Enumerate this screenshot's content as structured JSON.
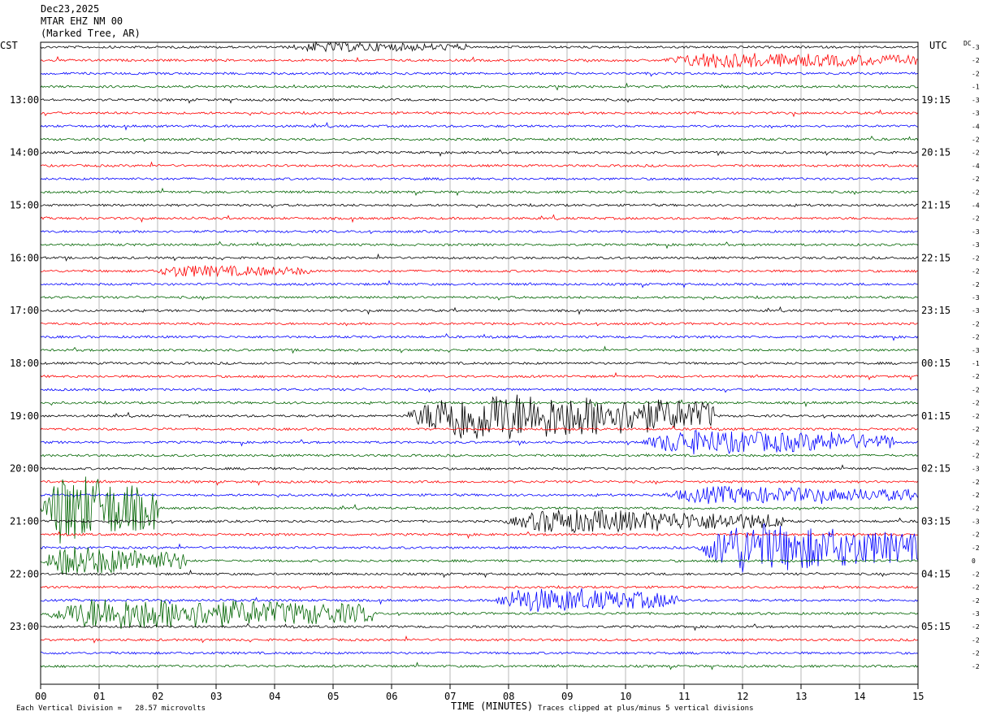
{
  "header": {
    "date": "Dec23,2025",
    "station": "MTAR EHZ NM 00",
    "location": "(Marked Tree, AR)"
  },
  "footer": {
    "scale_note": "Each Vertical Division =   28.57 microvolts",
    "clip_note": "Traces clipped at plus/minus 5 vertical divisions"
  },
  "chart_data": {
    "type": "line",
    "title": "",
    "xlabel": "TIME (MINUTES)",
    "x_ticks": [
      "00",
      "01",
      "02",
      "03",
      "04",
      "05",
      "06",
      "07",
      "08",
      "09",
      "10",
      "11",
      "12",
      "13",
      "14",
      "15"
    ],
    "xlim": [
      0,
      15
    ],
    "left_axis_title": "CST",
    "right_axis_title": "UTC",
    "dc_label": "DC",
    "left_hour_labels": [
      "13:00",
      "14:00",
      "15:00",
      "16:00",
      "17:00",
      "18:00",
      "19:00",
      "20:00",
      "21:00",
      "22:00",
      "23:00"
    ],
    "right_hour_labels": [
      "19:15",
      "20:15",
      "21:15",
      "22:15",
      "23:15",
      "00:15",
      "01:15",
      "02:15",
      "03:15",
      "04:15",
      "05:15"
    ],
    "hour_label_first_trace": 4,
    "trace_colors": [
      "#000000",
      "#ff0000",
      "#0000ff",
      "#006400"
    ],
    "trace_count": 48,
    "dc_offsets": [
      -3,
      -2,
      -2,
      -1,
      -3,
      -3,
      -4,
      -2,
      -2,
      -4,
      -2,
      -2,
      -4,
      -2,
      -3,
      -3,
      -2,
      -2,
      -2,
      -3,
      -3,
      -2,
      -2,
      -3,
      -1,
      -2,
      -2,
      -2,
      -2,
      -2,
      -2,
      -2,
      -3,
      -2,
      -2,
      -2,
      -3,
      -2,
      -2,
      0,
      -2,
      -2,
      -2,
      -3,
      -2,
      -2,
      -2,
      -2
    ],
    "amplitude_scale": "28.57 microvolts per division",
    "clip_divisions": 5,
    "events": [
      {
        "trace": 0,
        "start_min": 4.2,
        "end_min": 7.3,
        "level": 0.55
      },
      {
        "trace": 1,
        "start_min": 10.6,
        "end_min": 15,
        "level": 1.0
      },
      {
        "trace": 17,
        "start_min": 1.9,
        "end_min": 4.6,
        "level": 0.7
      },
      {
        "trace": 28,
        "start_min": 6.2,
        "end_min": 11.5,
        "level": 3.5
      },
      {
        "trace": 30,
        "start_min": 10.2,
        "end_min": 14.6,
        "level": 1.6
      },
      {
        "trace": 34,
        "start_min": 10.6,
        "end_min": 15,
        "level": 1.1
      },
      {
        "trace": 35,
        "start_min": 0,
        "end_min": 2.0,
        "level": 5
      },
      {
        "trace": 36,
        "start_min": 7.9,
        "end_min": 12.7,
        "level": 1.6
      },
      {
        "trace": 38,
        "start_min": 11.2,
        "end_min": 15,
        "level": 3.5
      },
      {
        "trace": 39,
        "start_min": 0,
        "end_min": 2.5,
        "level": 2.0
      },
      {
        "trace": 42,
        "start_min": 7.7,
        "end_min": 10.9,
        "level": 1.6
      },
      {
        "trace": 43,
        "start_min": 0,
        "end_min": 5.7,
        "level": 2.2
      }
    ]
  }
}
